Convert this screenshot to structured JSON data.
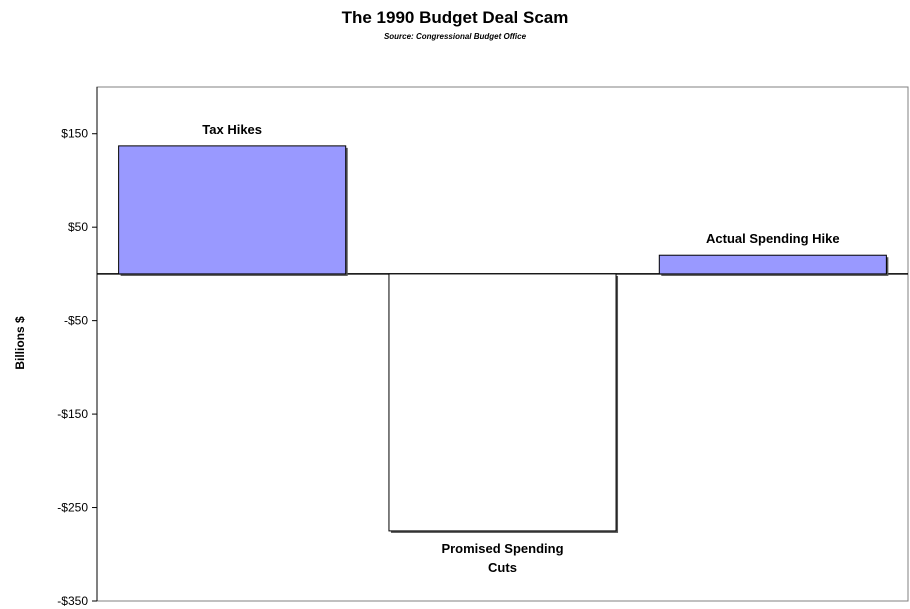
{
  "chart_data": {
    "type": "bar",
    "title": "The 1990 Budget Deal Scam",
    "subtitle": "Source: Congressional Budget Office",
    "xlabel": "",
    "ylabel": "Billions $",
    "ylim": [
      -350,
      200
    ],
    "yticks": [
      150,
      50,
      -50,
      -150,
      -250,
      -350
    ],
    "ytick_labels": [
      "$150",
      "$50",
      "-$50",
      "-$150",
      "-$250",
      "-$350"
    ],
    "grid": false,
    "legend": "none",
    "categories": [
      "Tax Hikes",
      "Promised Spending Cuts",
      "Actual Spending Hike"
    ],
    "bar_labels": [
      [
        "Tax Hikes"
      ],
      [
        "Promised Spending",
        "Cuts"
      ],
      [
        "Actual Spending Hike"
      ]
    ],
    "values": [
      137,
      -275,
      20
    ],
    "bar_colors": [
      "#9999ff",
      "#ffffff",
      "#9999ff"
    ]
  }
}
